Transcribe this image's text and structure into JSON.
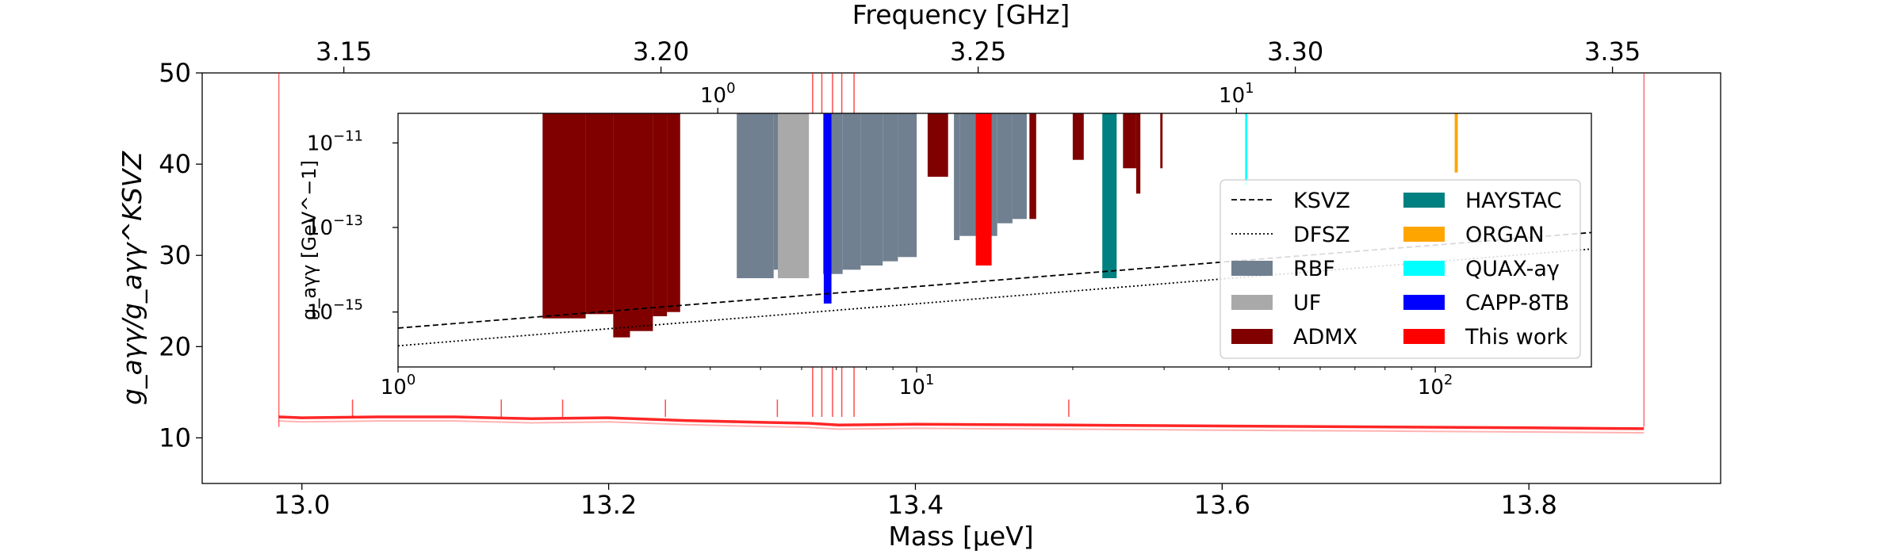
{
  "chart_data": [
    {
      "type": "line",
      "xlabel": "Mass [μeV]",
      "ylabel": "g_aγγ/g_aγγ^KSVZ",
      "top_xlabel": "Frequency [GHz]",
      "xlim": [
        12.935,
        13.925
      ],
      "ylim": [
        5,
        50
      ],
      "x_ticks": [
        "13.0",
        "13.2",
        "13.4",
        "13.6",
        "13.8"
      ],
      "y_ticks": [
        "10",
        "20",
        "30",
        "40",
        "50"
      ],
      "top_ticks": [
        "3.15",
        "3.20",
        "3.25",
        "3.30",
        "3.35"
      ],
      "series": [
        {
          "color": "#ff0000",
          "x": [
            12.985,
            13.0,
            13.05,
            13.1,
            13.15,
            13.2,
            13.25,
            13.3,
            13.33,
            13.35,
            13.4,
            13.5,
            13.6,
            13.7,
            13.8,
            13.875
          ],
          "y": [
            12.3,
            12.2,
            12.3,
            12.3,
            12.1,
            12.2,
            11.9,
            11.7,
            11.6,
            11.4,
            11.5,
            11.4,
            11.3,
            11.2,
            11.1,
            11.0
          ]
        }
      ],
      "exclusion_edges": [
        12.985,
        13.875
      ],
      "spikes": [
        13.033,
        13.13,
        13.17,
        13.237,
        13.31,
        13.333,
        13.339,
        13.346,
        13.352,
        13.36,
        13.5
      ]
    },
    {
      "type": "area",
      "scale": "log",
      "ylabel": "g_aγγ [GeV^−1]",
      "xlim": [
        1,
        200
      ],
      "ylim_exp": [
        -16.3,
        -10.3
      ],
      "x_ticks": [
        "10^0",
        "10^1",
        "10^2"
      ],
      "y_ticks": [
        "10^−11",
        "10^−13",
        "10^−15"
      ],
      "top_ticks": [
        "10^0",
        "10^1"
      ],
      "legend": [
        {
          "label": "KSVZ",
          "style": "dashed"
        },
        {
          "label": "DFSZ",
          "style": "dotted"
        },
        {
          "label": "RBF",
          "color": "#708090"
        },
        {
          "label": "UF",
          "color": "#a9a9a9"
        },
        {
          "label": "ADMX",
          "color": "#800000"
        },
        {
          "label": "HAYSTAC",
          "color": "#008080"
        },
        {
          "label": "ORGAN",
          "color": "#ffa500"
        },
        {
          "label": "QUAX-aγ",
          "color": "#00ffff"
        },
        {
          "label": "CAPP-8TB",
          "color": "#0000ff"
        },
        {
          "label": "This work",
          "color": "#ff0000"
        }
      ],
      "lines": {
        "KSVZ": {
          "x": [
            1,
            200
          ],
          "logy": [
            -15.38,
            -13.12
          ]
        },
        "DFSZ": {
          "x": [
            1,
            200
          ],
          "logy": [
            -15.8,
            -13.51
          ]
        }
      },
      "bands": [
        {
          "name": "ADMX",
          "color": "#800000",
          "segments": [
            [
              1.9,
              2.3,
              -15.15
            ],
            [
              2.3,
              2.6,
              -15.05
            ],
            [
              2.6,
              2.8,
              -15.6
            ],
            [
              2.8,
              3.1,
              -15.45
            ],
            [
              3.1,
              3.3,
              -15.1
            ],
            [
              3.3,
              3.5,
              -15.0
            ],
            [
              10.5,
              11.5,
              -11.8
            ],
            [
              12.5,
              13.3,
              -12.3
            ],
            [
              16.5,
              17.0,
              -12.8
            ],
            [
              20.0,
              21.0,
              -11.4
            ],
            [
              25.0,
              26.5,
              -11.6
            ],
            [
              26.5,
              27.0,
              -12.2
            ],
            [
              29.5,
              29.8,
              -11.6
            ]
          ]
        },
        {
          "name": "RBF",
          "color": "#708090",
          "segments": [
            [
              4.5,
              5.3,
              -14.2
            ],
            [
              5.3,
              5.8,
              -14.0
            ],
            [
              6.6,
              7.2,
              -14.1
            ],
            [
              7.2,
              7.8,
              -14.0
            ],
            [
              7.8,
              8.6,
              -13.9
            ],
            [
              8.6,
              9.2,
              -13.8
            ],
            [
              9.2,
              10.0,
              -13.7
            ],
            [
              10.0,
              11.8,
              -10.3
            ],
            [
              11.8,
              12.1,
              -13.3
            ],
            [
              12.1,
              13.3,
              -13.2
            ],
            [
              13.3,
              14.3,
              -13.2
            ],
            [
              14.3,
              15.3,
              -12.9
            ],
            [
              15.3,
              16.3,
              -12.8
            ]
          ]
        },
        {
          "name": "UF",
          "color": "#a9a9a9",
          "segments": [
            [
              5.4,
              6.2,
              -14.2
            ]
          ]
        },
        {
          "name": "CAPP-8TB",
          "color": "#0000ff",
          "segments": [
            [
              6.62,
              6.85,
              -14.8
            ]
          ]
        },
        {
          "name": "This work",
          "color": "#ff0000",
          "segments": [
            [
              13.0,
              13.95,
              -13.9
            ]
          ]
        },
        {
          "name": "HAYSTAC",
          "color": "#008080",
          "segments": [
            [
              22.8,
              24.3,
              -14.2
            ]
          ]
        },
        {
          "name": "QUAX-aγ",
          "color": "#00ffff",
          "segments": [
            [
              43.0,
              43.4,
              -12.0
            ]
          ]
        },
        {
          "name": "ORGAN",
          "color": "#ffa500",
          "segments": [
            [
              109.0,
              110.5,
              -11.7
            ]
          ]
        }
      ]
    }
  ]
}
